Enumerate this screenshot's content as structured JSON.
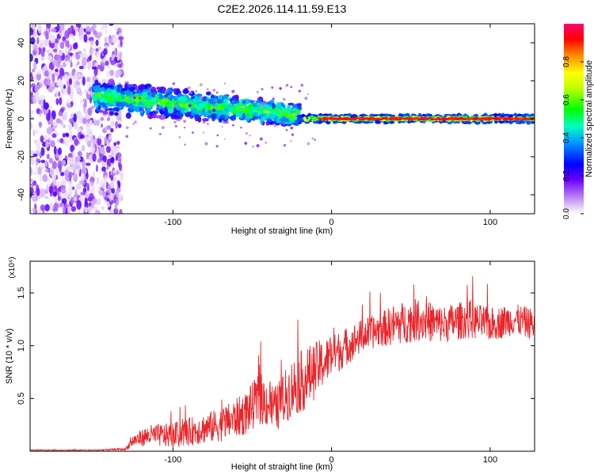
{
  "title": "C2E2.2026.114.11.59.E13",
  "chart_data": [
    {
      "type": "heatmap",
      "name": "spectrogram",
      "xlabel": "Height of straight line (km)",
      "ylabel": "Frequency (Hz)",
      "xlim": [
        -190,
        128
      ],
      "ylim": [
        -50,
        50
      ],
      "xticks": [
        -100,
        0,
        100
      ],
      "xtick_labels": [
        "-100",
        "0",
        "100"
      ],
      "yticks": [
        -40,
        -20,
        0,
        20,
        40
      ],
      "ytick_labels": [
        "-40",
        "-20",
        "0",
        "20",
        "40"
      ],
      "colorbar": {
        "label": "Normalized spectral amplitude",
        "range": [
          0,
          1
        ],
        "ticks": [
          0.0,
          0.2,
          0.4,
          0.6,
          0.8
        ],
        "tick_labels": [
          "0.0",
          "0.2",
          "0.4",
          "0.6",
          "0.8"
        ],
        "colors": [
          "#ffffff",
          "#c8a8f0",
          "#8a2be2",
          "#4b00ff",
          "#0000ff",
          "#00c8ff",
          "#00ff80",
          "#40ff00",
          "#ffff00",
          "#ff8000",
          "#ff0000",
          "#ff0080"
        ]
      },
      "regions": [
        {
          "x_range": [
            -190,
            -130
          ],
          "freq_center": 0,
          "freq_spread": 50,
          "amplitude": 0.1,
          "desc": "noise scatter"
        },
        {
          "x_range": [
            -150,
            -20
          ],
          "freq_center_start": 12,
          "freq_center_end": 2,
          "freq_spread": 8,
          "amplitude": 0.5
        },
        {
          "x_range": [
            -20,
            128
          ],
          "freq_center": 0,
          "freq_spread": 2,
          "amplitude": 0.9
        }
      ]
    },
    {
      "type": "line",
      "name": "snr",
      "xlabel": "Height of straight line (km)",
      "ylabel": "SNR (10 * v/v)",
      "scale_label": "(x10⁴)",
      "xlim": [
        -190,
        128
      ],
      "ylim": [
        0,
        1.8
      ],
      "xticks": [
        -100,
        0,
        100
      ],
      "xtick_labels": [
        "-100",
        "0",
        "100"
      ],
      "yticks": [
        0.5,
        1.0,
        1.5
      ],
      "ytick_labels": [
        "0.5",
        "1.0",
        "1.5"
      ],
      "color": "#e8262b",
      "series": [
        {
          "name": "SNR",
          "x": [
            -190,
            -170,
            -150,
            -130,
            -125,
            -115,
            -100,
            -85,
            -70,
            -55,
            -45,
            -35,
            -25,
            -15,
            -8,
            0,
            10,
            20,
            30,
            40,
            55,
            70,
            85,
            100,
            115,
            128
          ],
          "y": [
            0.01,
            0.01,
            0.01,
            0.02,
            0.1,
            0.15,
            0.15,
            0.2,
            0.25,
            0.35,
            0.5,
            0.4,
            0.6,
            0.7,
            0.8,
            0.9,
            1.0,
            1.1,
            1.15,
            1.2,
            1.25,
            1.2,
            1.25,
            1.2,
            1.25,
            1.2
          ],
          "noise": [
            0.005,
            0.005,
            0.005,
            0.01,
            0.06,
            0.1,
            0.12,
            0.14,
            0.16,
            0.2,
            0.25,
            0.22,
            0.28,
            0.3,
            0.25,
            0.2,
            0.18,
            0.16,
            0.16,
            0.2,
            0.2,
            0.18,
            0.18,
            0.16,
            0.15,
            0.15
          ]
        }
      ]
    }
  ]
}
